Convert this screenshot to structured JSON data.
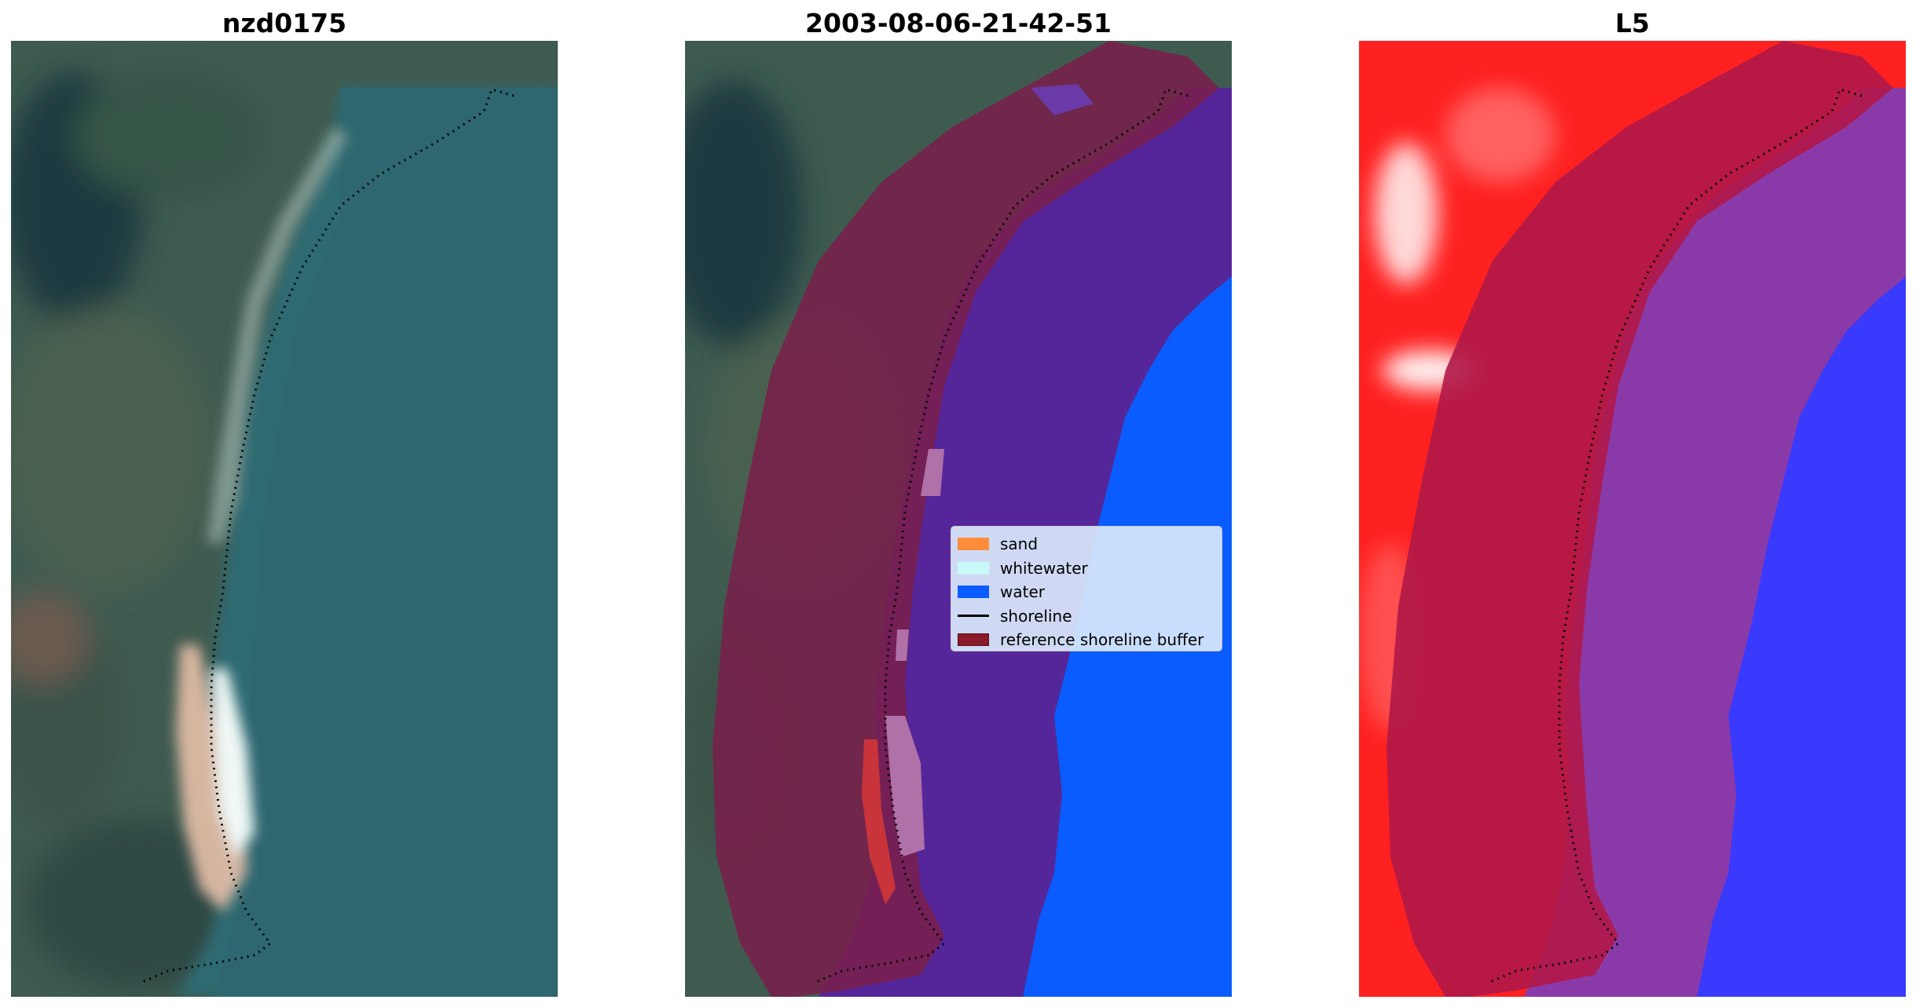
{
  "figure": {
    "panels": [
      {
        "title": "nzd0175"
      },
      {
        "title": "2003-08-06-21-42-51"
      },
      {
        "title": "L5"
      }
    ]
  },
  "legend": {
    "items": [
      {
        "label": "sand",
        "color": "#ff8c3a",
        "kind": "patch"
      },
      {
        "label": "whitewater",
        "color": "#c8f8f8",
        "kind": "patch"
      },
      {
        "label": "water",
        "color": "#0a5cff",
        "kind": "patch"
      },
      {
        "label": "shoreline",
        "color": "#000000",
        "kind": "line"
      },
      {
        "label": "reference shoreline buffer",
        "color": "#8b1a2a",
        "kind": "patch"
      }
    ]
  },
  "colors": {
    "land": "#3d5a4e",
    "sea": "#2f6a72",
    "buffer": "#7a1f4a",
    "water_class": "#0a5cff",
    "whitewater_class": "#c8f8f8",
    "sand_class": "#ff8c3a",
    "index_positive": "#ff1a1a",
    "index_negative": "#1a1aff"
  }
}
